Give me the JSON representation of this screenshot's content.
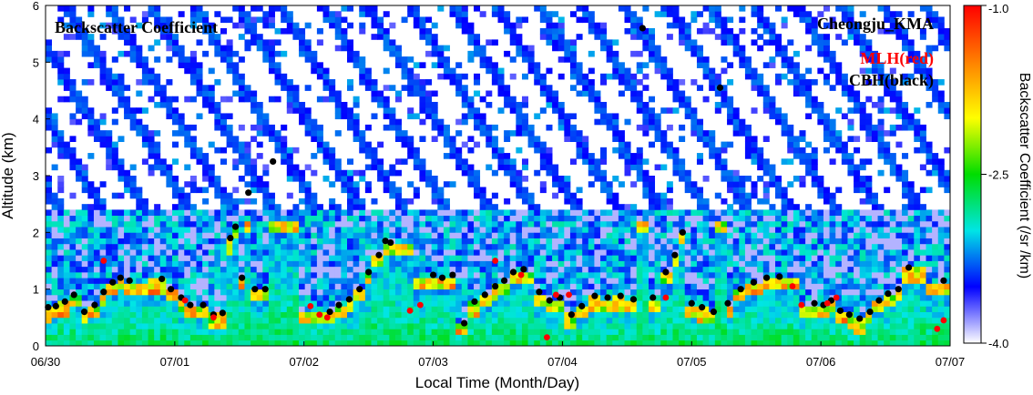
{
  "chart_data": {
    "type": "heatmap",
    "title": "Backscatter Coefficient",
    "station": "Cheongju_KMA",
    "legend": [
      {
        "label": "MLH(red)",
        "color": "#ff0000",
        "marker": "dot"
      },
      {
        "label": "CBH(black)",
        "color": "#000000",
        "marker": "dot"
      }
    ],
    "xlabel": "Local Time (Month/Day)",
    "ylabel": "Altitude (km)",
    "x_ticks": [
      "06/30",
      "07/01",
      "07/02",
      "07/03",
      "07/04",
      "07/05",
      "07/06",
      "07/07"
    ],
    "xlim_days": [
      0,
      7
    ],
    "ylim": [
      0,
      6
    ],
    "y_ticks": [
      "0",
      "1",
      "2",
      "3",
      "4",
      "5",
      "6"
    ],
    "colorbar": {
      "label": "Backscatter Coefficient (/sr /km)",
      "scale": "log10",
      "range": [
        -4.0,
        -1.0
      ],
      "tick_labels": [
        "-1.0",
        "-2.5",
        "-4.0"
      ],
      "colors": [
        "#ffffff",
        "#0000ff",
        "#00e5e5",
        "#00dd00",
        "#ffff00",
        "#ff8000",
        "#ff0000"
      ]
    },
    "cbh_series": [
      {
        "x": 0.02,
        "y": 0.68
      },
      {
        "x": 0.08,
        "y": 0.7
      },
      {
        "x": 0.15,
        "y": 0.78
      },
      {
        "x": 0.22,
        "y": 0.9
      },
      {
        "x": 0.3,
        "y": 0.6
      },
      {
        "x": 0.38,
        "y": 0.72
      },
      {
        "x": 0.45,
        "y": 0.95
      },
      {
        "x": 0.52,
        "y": 1.12
      },
      {
        "x": 0.58,
        "y": 1.2
      },
      {
        "x": 0.65,
        "y": 1.15
      },
      {
        "x": 0.9,
        "y": 1.18
      },
      {
        "x": 0.97,
        "y": 1.0
      },
      {
        "x": 1.05,
        "y": 0.85
      },
      {
        "x": 1.12,
        "y": 0.72
      },
      {
        "x": 1.22,
        "y": 0.72
      },
      {
        "x": 1.3,
        "y": 0.55
      },
      {
        "x": 1.37,
        "y": 0.58
      },
      {
        "x": 1.43,
        "y": 1.9
      },
      {
        "x": 1.47,
        "y": 2.1
      },
      {
        "x": 1.52,
        "y": 1.2
      },
      {
        "x": 1.57,
        "y": 2.7
      },
      {
        "x": 1.62,
        "y": 1.0
      },
      {
        "x": 1.7,
        "y": 1.0
      },
      {
        "x": 1.76,
        "y": 3.25
      },
      {
        "x": 2.2,
        "y": 0.6
      },
      {
        "x": 2.27,
        "y": 0.72
      },
      {
        "x": 2.35,
        "y": 0.82
      },
      {
        "x": 2.43,
        "y": 1.0
      },
      {
        "x": 2.5,
        "y": 1.3
      },
      {
        "x": 2.58,
        "y": 1.6
      },
      {
        "x": 2.63,
        "y": 1.85
      },
      {
        "x": 2.67,
        "y": 1.82
      },
      {
        "x": 3.0,
        "y": 1.25
      },
      {
        "x": 3.07,
        "y": 1.2
      },
      {
        "x": 3.15,
        "y": 1.25
      },
      {
        "x": 3.24,
        "y": 0.4
      },
      {
        "x": 3.32,
        "y": 0.78
      },
      {
        "x": 3.4,
        "y": 0.9
      },
      {
        "x": 3.48,
        "y": 1.05
      },
      {
        "x": 3.55,
        "y": 1.15
      },
      {
        "x": 3.62,
        "y": 1.3
      },
      {
        "x": 3.7,
        "y": 1.35
      },
      {
        "x": 3.82,
        "y": 0.95
      },
      {
        "x": 3.9,
        "y": 0.8
      },
      {
        "x": 3.98,
        "y": 0.85
      },
      {
        "x": 4.07,
        "y": 0.55
      },
      {
        "x": 4.15,
        "y": 0.7
      },
      {
        "x": 4.25,
        "y": 0.88
      },
      {
        "x": 4.35,
        "y": 0.85
      },
      {
        "x": 4.45,
        "y": 0.88
      },
      {
        "x": 4.55,
        "y": 0.82
      },
      {
        "x": 4.62,
        "y": 5.6
      },
      {
        "x": 4.7,
        "y": 0.85
      },
      {
        "x": 4.8,
        "y": 1.3
      },
      {
        "x": 4.87,
        "y": 1.6
      },
      {
        "x": 4.93,
        "y": 2.0
      },
      {
        "x": 5.0,
        "y": 0.75
      },
      {
        "x": 5.08,
        "y": 0.68
      },
      {
        "x": 5.17,
        "y": 0.6
      },
      {
        "x": 5.22,
        "y": 4.55
      },
      {
        "x": 5.28,
        "y": 0.75
      },
      {
        "x": 5.38,
        "y": 1.0
      },
      {
        "x": 5.48,
        "y": 1.12
      },
      {
        "x": 5.58,
        "y": 1.2
      },
      {
        "x": 5.68,
        "y": 1.22
      },
      {
        "x": 5.95,
        "y": 0.75
      },
      {
        "x": 6.02,
        "y": 0.72
      },
      {
        "x": 6.08,
        "y": 0.8
      },
      {
        "x": 6.15,
        "y": 0.62
      },
      {
        "x": 6.22,
        "y": 0.55
      },
      {
        "x": 6.3,
        "y": 0.48
      },
      {
        "x": 6.38,
        "y": 0.6
      },
      {
        "x": 6.45,
        "y": 0.8
      },
      {
        "x": 6.52,
        "y": 0.92
      },
      {
        "x": 6.6,
        "y": 1.0
      },
      {
        "x": 6.68,
        "y": 1.38
      },
      {
        "x": 6.95,
        "y": 1.15
      }
    ],
    "mlh_series": [
      {
        "x": 0.45,
        "y": 1.5
      },
      {
        "x": 1.08,
        "y": 0.8
      },
      {
        "x": 1.3,
        "y": 0.5
      },
      {
        "x": 2.05,
        "y": 0.7
      },
      {
        "x": 2.12,
        "y": 0.55
      },
      {
        "x": 2.18,
        "y": 0.5
      },
      {
        "x": 2.82,
        "y": 0.62
      },
      {
        "x": 2.9,
        "y": 0.72
      },
      {
        "x": 3.48,
        "y": 1.5
      },
      {
        "x": 3.68,
        "y": 1.25
      },
      {
        "x": 3.95,
        "y": 0.9
      },
      {
        "x": 3.88,
        "y": 0.15
      },
      {
        "x": 4.05,
        "y": 0.9
      },
      {
        "x": 4.8,
        "y": 0.85
      },
      {
        "x": 5.78,
        "y": 1.05
      },
      {
        "x": 5.85,
        "y": 0.72
      },
      {
        "x": 6.05,
        "y": 0.75
      },
      {
        "x": 6.12,
        "y": 0.85
      },
      {
        "x": 6.9,
        "y": 0.3
      },
      {
        "x": 6.95,
        "y": 0.45
      }
    ]
  }
}
